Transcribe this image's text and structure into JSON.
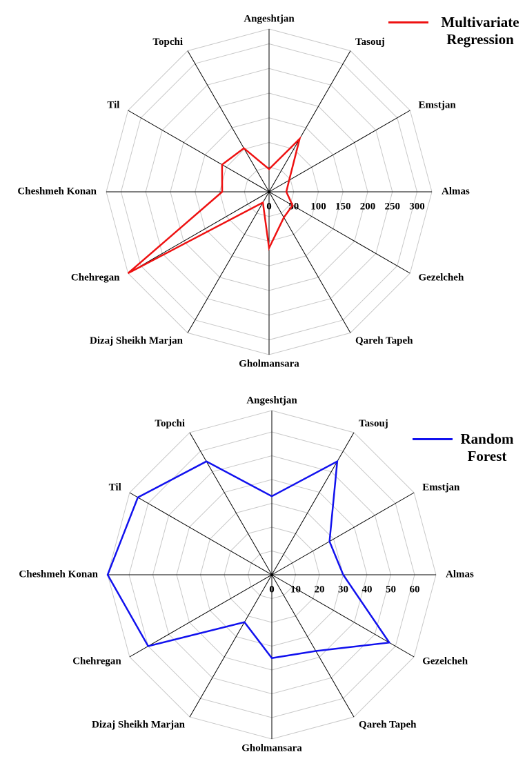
{
  "chart_data": [
    {
      "type": "radar",
      "categories": [
        "Angeshtjan",
        "Tasouj",
        "Emstjan",
        "Almas",
        "Gezelcheh",
        "Qareh Tapeh",
        "Gholmansara",
        "Dizaj Sheikh Marjan",
        "Chehregan",
        "Cheshmeh Konan",
        "Til",
        "Topchi"
      ],
      "series": [
        {
          "name": "Multivariate Regression",
          "color": "#ee1111",
          "values": [
            46,
            124,
            47,
            35,
            55,
            60,
            114,
            25,
            330,
            95,
            110,
            102
          ]
        }
      ],
      "rlim": [
        0,
        330
      ],
      "rticks": [
        0,
        50,
        100,
        150,
        200,
        250,
        300
      ],
      "grid": true,
      "legend": "top-right"
    },
    {
      "type": "radar",
      "categories": [
        "Angeshtjan",
        "Tasouj",
        "Emstjan",
        "Almas",
        "Gezelcheh",
        "Qareh Tapeh",
        "Gholmansara",
        "Dizaj Sheikh Marjan",
        "Chehregan",
        "Cheshmeh Konan",
        "Til",
        "Topchi"
      ],
      "series": [
        {
          "name": "Random Forest",
          "color": "#1111ee",
          "values": [
            33,
            55,
            28,
            30,
            57,
            37,
            35,
            23,
            60,
            69,
            65,
            55
          ]
        }
      ],
      "rlim": [
        0,
        69
      ],
      "rticks": [
        0,
        10,
        20,
        30,
        40,
        50,
        60
      ],
      "grid": true,
      "legend": "top-right"
    }
  ]
}
